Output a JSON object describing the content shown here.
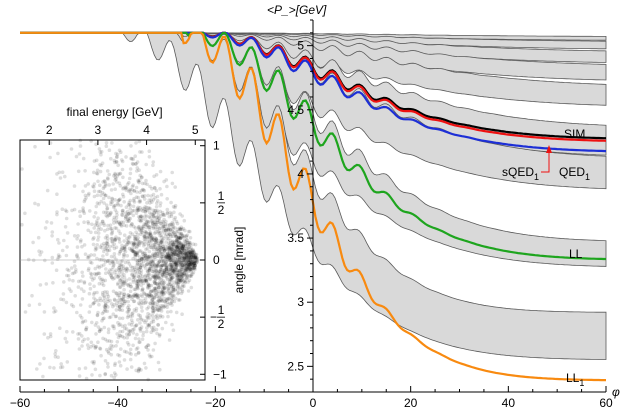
{
  "chart_data": [
    {
      "type": "area",
      "x_axis": {
        "label": "φ",
        "range": [
          -60,
          60
        ],
        "ticks": [
          "-60",
          "-40",
          "-20",
          "0",
          "20",
          "40",
          "60"
        ]
      },
      "y_axis": {
        "label": "<P_>[GeV]",
        "range": [
          2.3,
          5.2
        ],
        "ticks": [
          "2.5",
          "3",
          "3.5",
          "4",
          "4.5",
          "5"
        ]
      },
      "grid": false,
      "initial_value": 5.1,
      "bands": [
        {
          "final_low": 5.04,
          "final_high": 5.07
        },
        {
          "final_low": 4.97,
          "final_high": 5.03
        },
        {
          "final_low": 4.86,
          "final_high": 4.95
        },
        {
          "final_low": 4.72,
          "final_high": 4.84
        },
        {
          "final_low": 4.52,
          "final_high": 4.68
        },
        {
          "final_low": 4.13,
          "final_high": 4.36
        },
        {
          "final_low": 3.87,
          "final_high": 4.12
        },
        {
          "final_low": 3.27,
          "final_high": 3.47
        },
        {
          "final_low": 2.55,
          "final_high": 2.92
        }
      ],
      "series": [
        {
          "name": "SIM",
          "color": "#000000",
          "final": 4.27,
          "onset": -25
        },
        {
          "name": "sQED₁",
          "color": "#ee1111",
          "final": 4.25,
          "onset": -25
        },
        {
          "name": "QED₁",
          "color": "#1d2fd6",
          "final": 4.17,
          "onset": -25
        },
        {
          "name": "LL",
          "color": "#1ea51e",
          "final": 3.33,
          "onset": -26
        },
        {
          "name": "LL₁",
          "color": "#f88a10",
          "final": 2.39,
          "onset": -27
        }
      ],
      "annotations": [
        {
          "text": "SIM",
          "color": "#000000"
        },
        {
          "text": "sQED",
          "sub": "1",
          "color": "#ee1111"
        },
        {
          "text": "QED",
          "sub": "1",
          "color": "#1d2fd6"
        },
        {
          "text": "LL",
          "color": "#1ea51e"
        },
        {
          "text": "LL",
          "sub": "1",
          "color": "#f88a10"
        }
      ]
    },
    {
      "type": "scatter",
      "x_axis": {
        "label": "final energy [GeV]",
        "range": [
          1.4,
          5.2
        ],
        "ticks": [
          "2",
          "3",
          "4",
          "5"
        ]
      },
      "y_axis": {
        "label": "angle [mrad]",
        "range": [
          -1.05,
          1.05
        ],
        "ticks": [
          {
            "value": 1,
            "text": "1"
          },
          {
            "value": 0.5,
            "num": "1",
            "den": "2"
          },
          {
            "value": 0,
            "text": "0"
          },
          {
            "value": -0.5,
            "sign": "−",
            "num": "1",
            "den": "2"
          },
          {
            "value": -1,
            "text": "−1"
          }
        ]
      },
      "point_cloud": {
        "apex_energy": 5.05,
        "apex_angle": 0,
        "count": 2600,
        "color": "#000000",
        "opacity": 0.13
      }
    }
  ]
}
